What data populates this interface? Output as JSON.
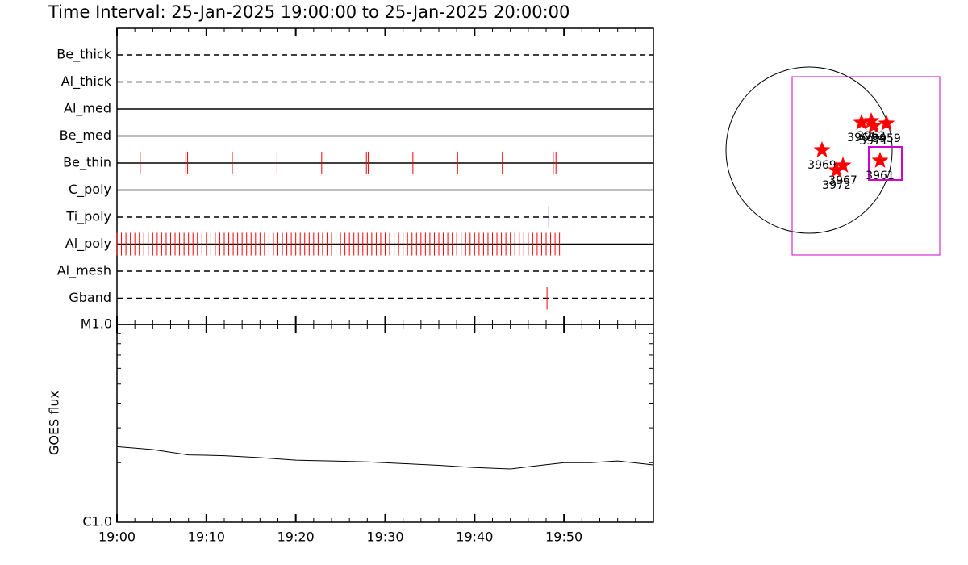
{
  "chart_data": [
    {
      "type": "timeline",
      "title": "Time Interval: 25-Jan-2025 19:00:00 to 25-Jan-2025 20:00:00",
      "xlim": [
        0,
        60
      ],
      "rows": [
        {
          "name": "Be_thick",
          "line": "dashed",
          "color": "#ff0000",
          "events": []
        },
        {
          "name": "Al_thick",
          "line": "dashed",
          "color": "#ff0000",
          "events": []
        },
        {
          "name": "Al_med",
          "line": "solid",
          "color": "#ff0000",
          "events": []
        },
        {
          "name": "Be_med",
          "line": "solid",
          "color": "#ff0000",
          "events": []
        },
        {
          "name": "Be_thin",
          "line": "solid",
          "color": "#ff0000",
          "events": [
            2.6,
            7.7,
            7.9,
            12.9,
            17.9,
            22.9,
            27.9,
            28.1,
            33.1,
            38.1,
            43.1,
            48.8,
            49.1
          ]
        },
        {
          "name": "C_poly",
          "line": "solid",
          "color": "#ff0000",
          "events": []
        },
        {
          "name": "Ti_poly",
          "line": "dashed",
          "color": "#3030c0",
          "events": [
            48.3
          ]
        },
        {
          "name": "Al_poly",
          "line": "solid",
          "color": "#ff0000",
          "events": [
            0,
            0.5,
            1,
            1.5,
            2,
            2.5,
            3,
            3.5,
            4,
            4.5,
            5,
            5.5,
            6,
            6.5,
            7,
            7.5,
            8,
            8.5,
            9,
            9.5,
            10,
            10.5,
            11,
            11.5,
            12,
            12.5,
            13,
            13.5,
            14,
            14.5,
            15,
            15.5,
            16,
            16.5,
            17,
            17.5,
            18,
            18.5,
            19,
            19.5,
            20,
            20.5,
            21,
            21.5,
            22,
            22.5,
            23,
            23.5,
            24,
            24.5,
            25,
            25.5,
            26,
            26.5,
            27,
            27.5,
            28,
            28.5,
            29,
            29.5,
            30,
            30.5,
            31,
            31.5,
            32,
            32.5,
            33,
            33.5,
            34,
            34.5,
            35,
            35.5,
            36,
            36.5,
            37,
            37.5,
            38,
            38.5,
            39,
            39.5,
            40,
            40.5,
            41,
            41.5,
            42,
            42.5,
            43,
            43.5,
            44,
            44.5,
            45,
            45.5,
            46,
            46.5,
            47,
            47.5,
            48,
            48.5,
            49,
            49.5
          ]
        },
        {
          "name": "Al_mesh",
          "line": "dashed",
          "color": "#ff0000",
          "events": []
        },
        {
          "name": "Gband",
          "line": "dashed",
          "color": "#ff0000",
          "events": [
            48.1
          ]
        }
      ]
    },
    {
      "type": "line",
      "y_label": "GOES flux",
      "log_scale": true,
      "color": "#000000",
      "x": [
        0,
        4,
        8,
        12,
        16,
        20,
        24,
        28,
        32,
        36,
        40,
        44,
        47,
        50,
        53,
        56,
        60
      ],
      "values": [
        2.41e-06,
        2.33e-06,
        2.19e-06,
        2.17e-06,
        2.12e-06,
        2.06e-06,
        2.04e-06,
        2.02e-06,
        1.98e-06,
        1.94e-06,
        1.89e-06,
        1.86e-06,
        1.93e-06,
        2e-06,
        2e-06,
        2.04e-06,
        1.95e-06
      ],
      "xlim": [
        0,
        60
      ],
      "xticks": [
        {
          "value": 0,
          "label": "19:00"
        },
        {
          "value": 10,
          "label": "19:10"
        },
        {
          "value": 20,
          "label": "19:20"
        },
        {
          "value": 30,
          "label": "19:30"
        },
        {
          "value": 40,
          "label": "19:40"
        },
        {
          "value": 50,
          "label": "19:50"
        }
      ],
      "ylim": [
        1e-06,
        1e-05
      ],
      "yticks": [
        {
          "value": 1e-06,
          "label": "C1.0"
        },
        {
          "value": 1e-05,
          "label": "M1.0"
        }
      ]
    }
  ],
  "map": {
    "regions": [
      "3969",
      "3967",
      "3972",
      "3961",
      "3965",
      "3962",
      "3971",
      "3959"
    ]
  }
}
